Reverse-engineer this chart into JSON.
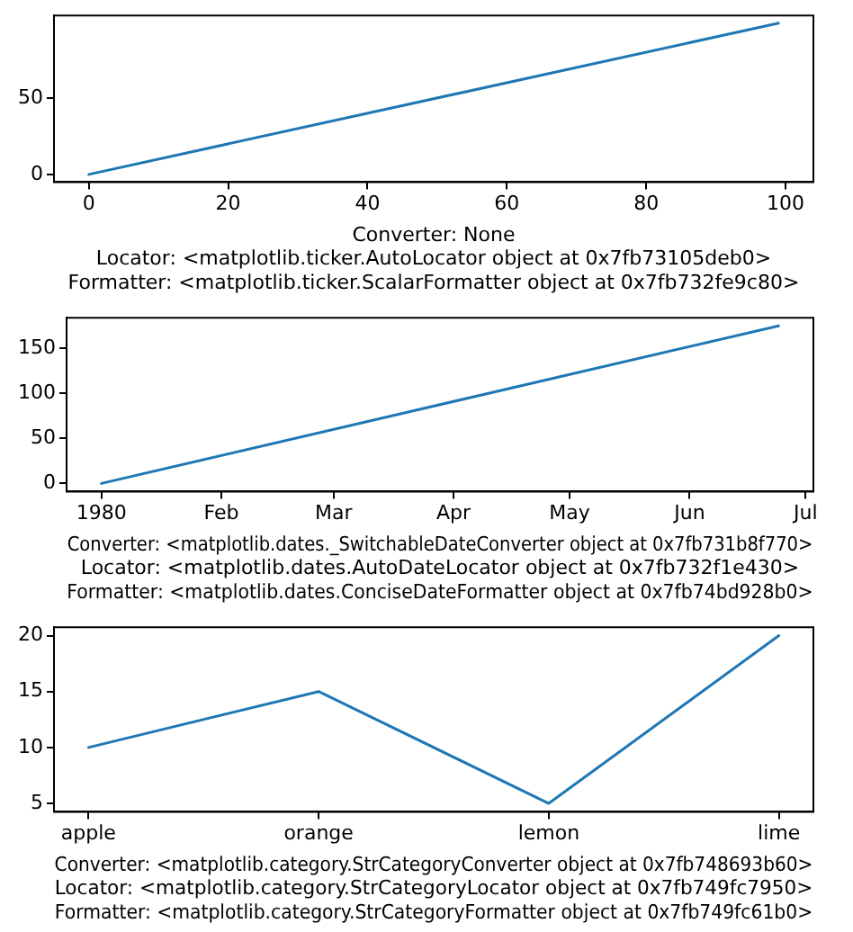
{
  "chart_data": [
    {
      "type": "line",
      "x": [
        0,
        99
      ],
      "values": [
        0,
        99
      ],
      "color": "#1f77b4",
      "xlim": [
        -5,
        104
      ],
      "ylim": [
        -5,
        104
      ],
      "xticks": [
        0,
        20,
        40,
        60,
        80,
        100
      ],
      "yticks": [
        0,
        50
      ],
      "xlabel": "Converter: None\nLocator: <matplotlib.ticker.AutoLocator object at 0x7fb73105deb0>\nFormatter: <matplotlib.ticker.ScalarFormatter object at 0x7fb732fe9c80>",
      "grid": false,
      "legend": false
    },
    {
      "type": "line",
      "x": [
        "1980-01-01",
        "1980-06-24"
      ],
      "values": [
        0,
        175
      ],
      "color": "#1f77b4",
      "xlim": [
        "1979-12-23",
        "1980-07-03"
      ],
      "ylim": [
        -9,
        184
      ],
      "xticks": [
        {
          "value": "1980-01-01",
          "label": "1980"
        },
        {
          "value": "1980-02-01",
          "label": "Feb"
        },
        {
          "value": "1980-03-01",
          "label": "Mar"
        },
        {
          "value": "1980-04-01",
          "label": "Apr"
        },
        {
          "value": "1980-05-01",
          "label": "May"
        },
        {
          "value": "1980-06-01",
          "label": "Jun"
        },
        {
          "value": "1980-07-01",
          "label": "Jul"
        }
      ],
      "yticks": [
        0,
        50,
        100,
        150
      ],
      "xlabel": "Converter: <matplotlib.dates._SwitchableDateConverter object at 0x7fb731b8f770>\nLocator: <matplotlib.dates.AutoDateLocator object at 0x7fb732f1e430>\nFormatter: <matplotlib.dates.ConciseDateFormatter object at 0x7fb74bd928b0>",
      "grid": false,
      "legend": false
    },
    {
      "type": "line",
      "categories": [
        "apple",
        "orange",
        "lemon",
        "lime"
      ],
      "values": [
        10,
        15,
        5,
        20
      ],
      "color": "#1f77b4",
      "ylim": [
        4.25,
        20.75
      ],
      "yticks": [
        5,
        10,
        15,
        20
      ],
      "xlabel": "Converter: <matplotlib.category.StrCategoryConverter object at 0x7fb748693b60>\nLocator: <matplotlib.category.StrCategoryLocator object at 0x7fb749fc7950>\nFormatter: <matplotlib.category.StrCategoryFormatter object at 0x7fb749fc61b0>",
      "grid": false,
      "legend": false
    }
  ]
}
